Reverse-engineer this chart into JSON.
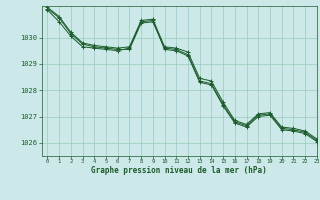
{
  "xlabel": "Graphe pression niveau de la mer (hPa)",
  "xlim": [
    -0.5,
    23
  ],
  "ylim": [
    1025.5,
    1031.2
  ],
  "yticks": [
    1026,
    1027,
    1028,
    1029,
    1030
  ],
  "xticks": [
    0,
    1,
    2,
    3,
    4,
    5,
    6,
    7,
    8,
    9,
    10,
    11,
    12,
    13,
    14,
    15,
    16,
    17,
    18,
    19,
    20,
    21,
    22,
    23
  ],
  "bg_color": "#cce8e8",
  "grid_color": "#99ccbb",
  "line_color": "#1a5c2a",
  "series1": [
    1031.1,
    1030.75,
    1030.15,
    1029.75,
    1029.65,
    1029.6,
    1029.55,
    1029.55,
    1030.55,
    1030.6,
    1029.6,
    1029.55,
    1029.35,
    1028.35,
    1028.25,
    1027.45,
    1026.8,
    1026.65,
    1027.05,
    1027.1,
    1026.55,
    1026.5,
    1026.4,
    1026.1
  ],
  "series2": [
    1031.05,
    1030.6,
    1030.05,
    1029.65,
    1029.6,
    1029.55,
    1029.5,
    1029.6,
    1030.6,
    1030.65,
    1029.55,
    1029.5,
    1029.3,
    1028.3,
    1028.2,
    1027.4,
    1026.75,
    1026.6,
    1027.0,
    1027.05,
    1026.5,
    1026.45,
    1026.35,
    1026.05
  ],
  "series3": [
    1031.15,
    1030.8,
    1030.2,
    1029.8,
    1029.7,
    1029.65,
    1029.6,
    1029.65,
    1030.65,
    1030.7,
    1029.65,
    1029.6,
    1029.45,
    1028.45,
    1028.35,
    1027.55,
    1026.85,
    1026.7,
    1027.1,
    1027.15,
    1026.6,
    1026.55,
    1026.45,
    1026.15
  ]
}
